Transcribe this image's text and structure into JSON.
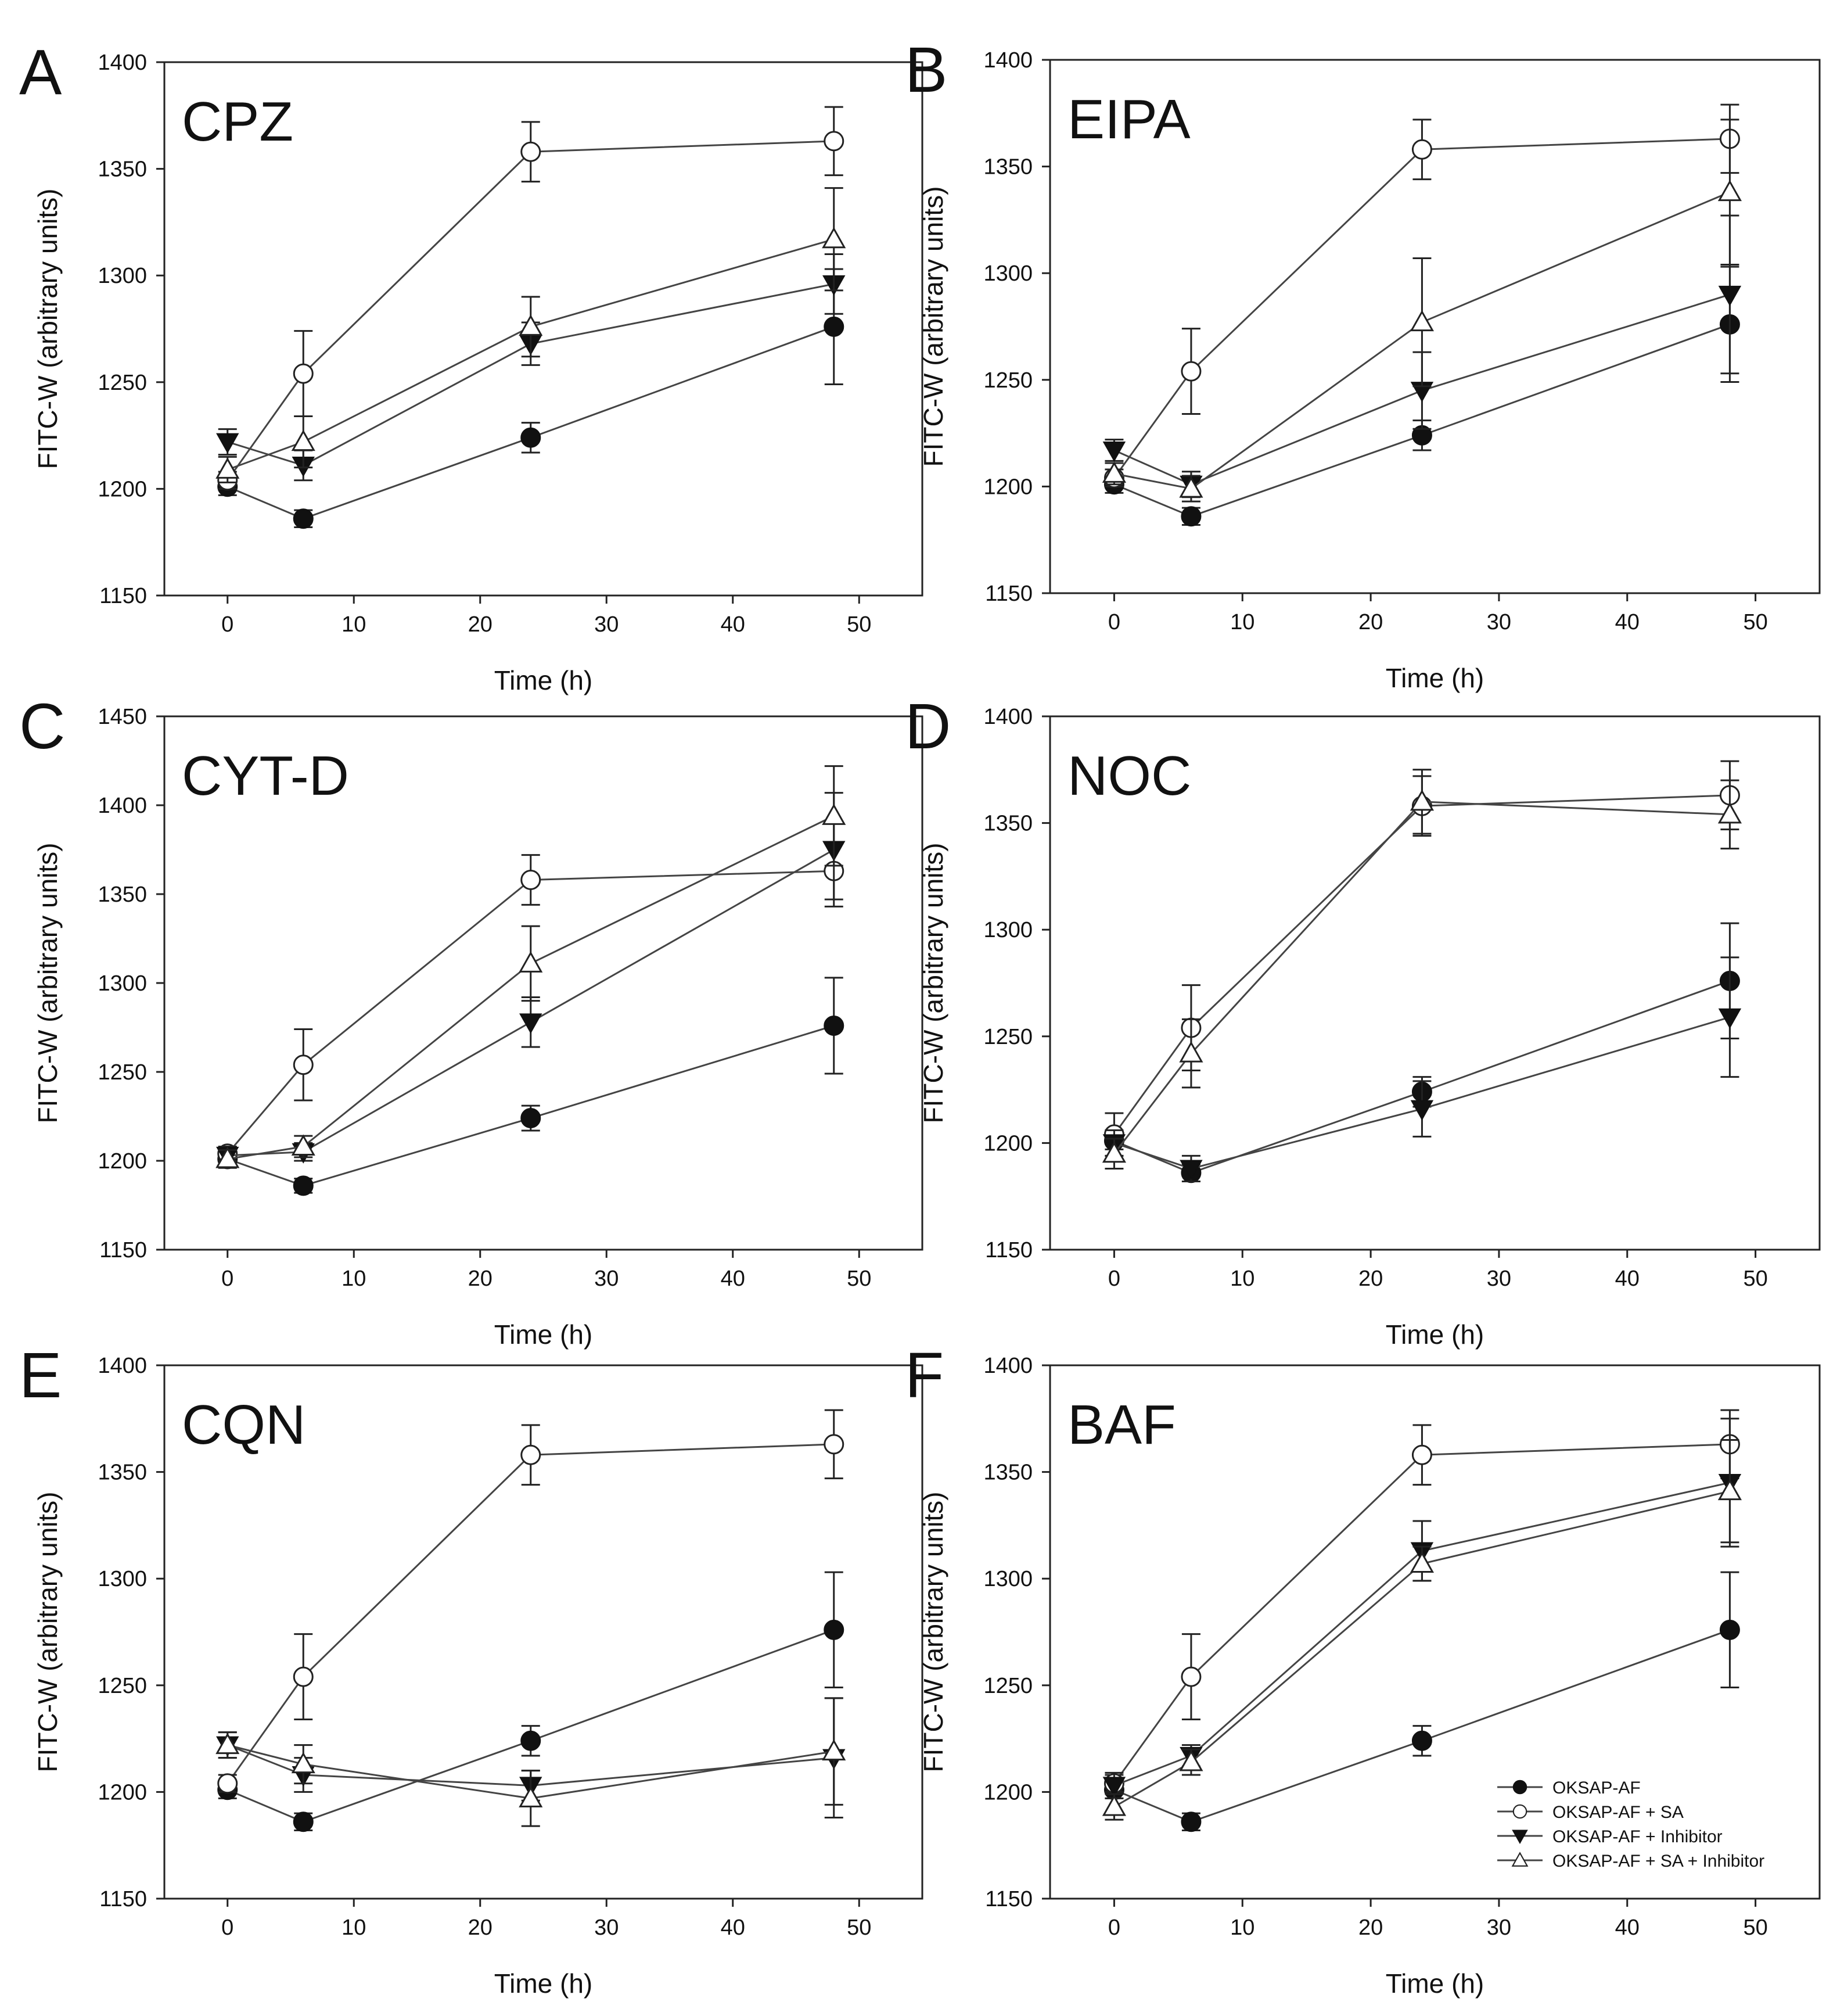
{
  "figure": {
    "xlabel": "Time (h)",
    "ylabel": "FITC-W (arbitrary units)",
    "legend": [
      {
        "label": "OKSAP-AF",
        "marker": "circle-filled"
      },
      {
        "label": "OKSAP-AF + SA",
        "marker": "circle-open"
      },
      {
        "label": "OKSAP-AF + Inhibitor",
        "marker": "triangle-down-filled"
      },
      {
        "label": "OKSAP-AF + SA + Inhibitor",
        "marker": "triangle-up-open"
      }
    ]
  },
  "chart_data": [
    {
      "panel": "A",
      "label": "CPZ",
      "type": "line",
      "x": [
        0,
        6,
        24,
        48
      ],
      "xlim": [
        -5,
        55
      ],
      "xticks": [
        0,
        10,
        20,
        30,
        40,
        50
      ],
      "ylim": [
        1150,
        1400
      ],
      "yticks": [
        1150,
        1200,
        1250,
        1300,
        1350,
        1400
      ],
      "xlabel": "Time (h)",
      "ylabel": "FITC-W (arbitrary units)",
      "legend": false,
      "series": [
        {
          "name": "OKSAP-AF",
          "marker": "circle-filled",
          "values": [
            1201,
            1186,
            1224,
            1276
          ],
          "errors": [
            4,
            4,
            7,
            27
          ]
        },
        {
          "name": "OKSAP-AF + SA",
          "marker": "circle-open",
          "values": [
            1204,
            1254,
            1358,
            1363
          ],
          "errors": [
            4,
            20,
            14,
            16
          ]
        },
        {
          "name": "OKSAP-AF + Inhibitor",
          "marker": "triangle-down-filled",
          "values": [
            1222,
            1211,
            1268,
            1296
          ],
          "errors": [
            6,
            7,
            10,
            14
          ]
        },
        {
          "name": "OKSAP-AF + SA + Inhibitor",
          "marker": "triangle-up-open",
          "values": [
            1209,
            1222,
            1276,
            1317
          ],
          "errors": [
            6,
            12,
            14,
            24
          ]
        }
      ]
    },
    {
      "panel": "B",
      "label": "EIPA",
      "type": "line",
      "x": [
        0,
        6,
        24,
        48
      ],
      "xlim": [
        -5,
        55
      ],
      "xticks": [
        0,
        10,
        20,
        30,
        40,
        50
      ],
      "ylim": [
        1150,
        1400
      ],
      "yticks": [
        1150,
        1200,
        1250,
        1300,
        1350,
        1400
      ],
      "xlabel": "Time (h)",
      "ylabel": "FITC-W (arbitrary units)",
      "legend": false,
      "series": [
        {
          "name": "OKSAP-AF",
          "marker": "circle-filled",
          "values": [
            1201,
            1186,
            1224,
            1276
          ],
          "errors": [
            4,
            4,
            7,
            27
          ]
        },
        {
          "name": "OKSAP-AF + SA",
          "marker": "circle-open",
          "values": [
            1204,
            1254,
            1358,
            1363
          ],
          "errors": [
            4,
            20,
            14,
            16
          ]
        },
        {
          "name": "OKSAP-AF + Inhibitor",
          "marker": "triangle-down-filled",
          "values": [
            1217,
            1201,
            1245,
            1290
          ],
          "errors": [
            5,
            6,
            18,
            37
          ]
        },
        {
          "name": "OKSAP-AF + SA + Inhibitor",
          "marker": "triangle-up-open",
          "values": [
            1206,
            1199,
            1277,
            1338
          ],
          "errors": [
            5,
            6,
            30,
            34
          ]
        }
      ]
    },
    {
      "panel": "C",
      "label": "CYT-D",
      "type": "line",
      "x": [
        0,
        6,
        24,
        48
      ],
      "xlim": [
        -5,
        55
      ],
      "xticks": [
        0,
        10,
        20,
        30,
        40,
        50
      ],
      "ylim": [
        1150,
        1450
      ],
      "yticks": [
        1150,
        1200,
        1250,
        1300,
        1350,
        1400,
        1450
      ],
      "xlabel": "Time (h)",
      "ylabel": "FITC-W (arbitrary units)",
      "legend": false,
      "series": [
        {
          "name": "OKSAP-AF",
          "marker": "circle-filled",
          "values": [
            1201,
            1186,
            1224,
            1276
          ],
          "errors": [
            4,
            4,
            7,
            27
          ]
        },
        {
          "name": "OKSAP-AF + SA",
          "marker": "circle-open",
          "values": [
            1204,
            1254,
            1358,
            1363
          ],
          "errors": [
            4,
            20,
            14,
            16
          ]
        },
        {
          "name": "OKSAP-AF + Inhibitor",
          "marker": "triangle-down-filled",
          "values": [
            1203,
            1205,
            1278,
            1375
          ],
          "errors": [
            5,
            5,
            14,
            32
          ]
        },
        {
          "name": "OKSAP-AF + SA + Inhibitor",
          "marker": "triangle-up-open",
          "values": [
            1201,
            1208,
            1311,
            1394
          ],
          "errors": [
            5,
            6,
            21,
            28
          ]
        }
      ]
    },
    {
      "panel": "D",
      "label": "NOC",
      "type": "line",
      "x": [
        0,
        6,
        24,
        48
      ],
      "xlim": [
        -5,
        55
      ],
      "xticks": [
        0,
        10,
        20,
        30,
        40,
        50
      ],
      "ylim": [
        1150,
        1400
      ],
      "yticks": [
        1150,
        1200,
        1250,
        1300,
        1350,
        1400
      ],
      "xlabel": "Time (h)",
      "ylabel": "FITC-W (arbitrary units)",
      "legend": false,
      "series": [
        {
          "name": "OKSAP-AF",
          "marker": "circle-filled",
          "values": [
            1201,
            1186,
            1224,
            1276
          ],
          "errors": [
            4,
            4,
            7,
            27
          ]
        },
        {
          "name": "OKSAP-AF + SA",
          "marker": "circle-open",
          "values": [
            1204,
            1254,
            1358,
            1363
          ],
          "errors": [
            10,
            20,
            14,
            16
          ]
        },
        {
          "name": "OKSAP-AF + Inhibitor",
          "marker": "triangle-down-filled",
          "values": [
            1200,
            1188,
            1216,
            1259
          ],
          "errors": [
            6,
            6,
            13,
            28
          ]
        },
        {
          "name": "OKSAP-AF + SA + Inhibitor",
          "marker": "triangle-up-open",
          "values": [
            1195,
            1242,
            1360,
            1354
          ],
          "errors": [
            7,
            16,
            15,
            16
          ]
        }
      ]
    },
    {
      "panel": "E",
      "label": "CQN",
      "type": "line",
      "x": [
        0,
        6,
        24,
        48
      ],
      "xlim": [
        -5,
        55
      ],
      "xticks": [
        0,
        10,
        20,
        30,
        40,
        50
      ],
      "ylim": [
        1150,
        1400
      ],
      "yticks": [
        1150,
        1200,
        1250,
        1300,
        1350,
        1400
      ],
      "xlabel": "Time (h)",
      "ylabel": "FITC-W (arbitrary units)",
      "legend": false,
      "series": [
        {
          "name": "OKSAP-AF",
          "marker": "circle-filled",
          "values": [
            1201,
            1186,
            1224,
            1276
          ],
          "errors": [
            4,
            4,
            7,
            27
          ]
        },
        {
          "name": "OKSAP-AF + SA",
          "marker": "circle-open",
          "values": [
            1204,
            1254,
            1358,
            1363
          ],
          "errors": [
            4,
            20,
            14,
            16
          ]
        },
        {
          "name": "OKSAP-AF + Inhibitor",
          "marker": "triangle-down-filled",
          "values": [
            1222,
            1208,
            1203,
            1216
          ],
          "errors": [
            6,
            8,
            7,
            28
          ]
        },
        {
          "name": "OKSAP-AF + SA + Inhibitor",
          "marker": "triangle-up-open",
          "values": [
            1222,
            1213,
            1197,
            1219
          ],
          "errors": [
            6,
            9,
            13,
            25
          ]
        }
      ]
    },
    {
      "panel": "F",
      "label": "BAF",
      "type": "line",
      "x": [
        0,
        6,
        24,
        48
      ],
      "xlim": [
        -5,
        55
      ],
      "xticks": [
        0,
        10,
        20,
        30,
        40,
        50
      ],
      "ylim": [
        1150,
        1400
      ],
      "yticks": [
        1150,
        1200,
        1250,
        1300,
        1350,
        1400
      ],
      "xlabel": "Time (h)",
      "ylabel": "FITC-W (arbitrary units)",
      "legend": true,
      "series": [
        {
          "name": "OKSAP-AF",
          "marker": "circle-filled",
          "values": [
            1201,
            1186,
            1224,
            1276
          ],
          "errors": [
            4,
            4,
            7,
            27
          ]
        },
        {
          "name": "OKSAP-AF + SA",
          "marker": "circle-open",
          "values": [
            1204,
            1254,
            1358,
            1363
          ],
          "errors": [
            4,
            20,
            14,
            16
          ]
        },
        {
          "name": "OKSAP-AF + Inhibitor",
          "marker": "triangle-down-filled",
          "values": [
            1203,
            1217,
            1313,
            1345
          ],
          "errors": [
            6,
            5,
            14,
            30
          ]
        },
        {
          "name": "OKSAP-AF + SA + Inhibitor",
          "marker": "triangle-up-open",
          "values": [
            1193,
            1214,
            1307,
            1341
          ],
          "errors": [
            6,
            6,
            8,
            24
          ]
        }
      ]
    }
  ]
}
